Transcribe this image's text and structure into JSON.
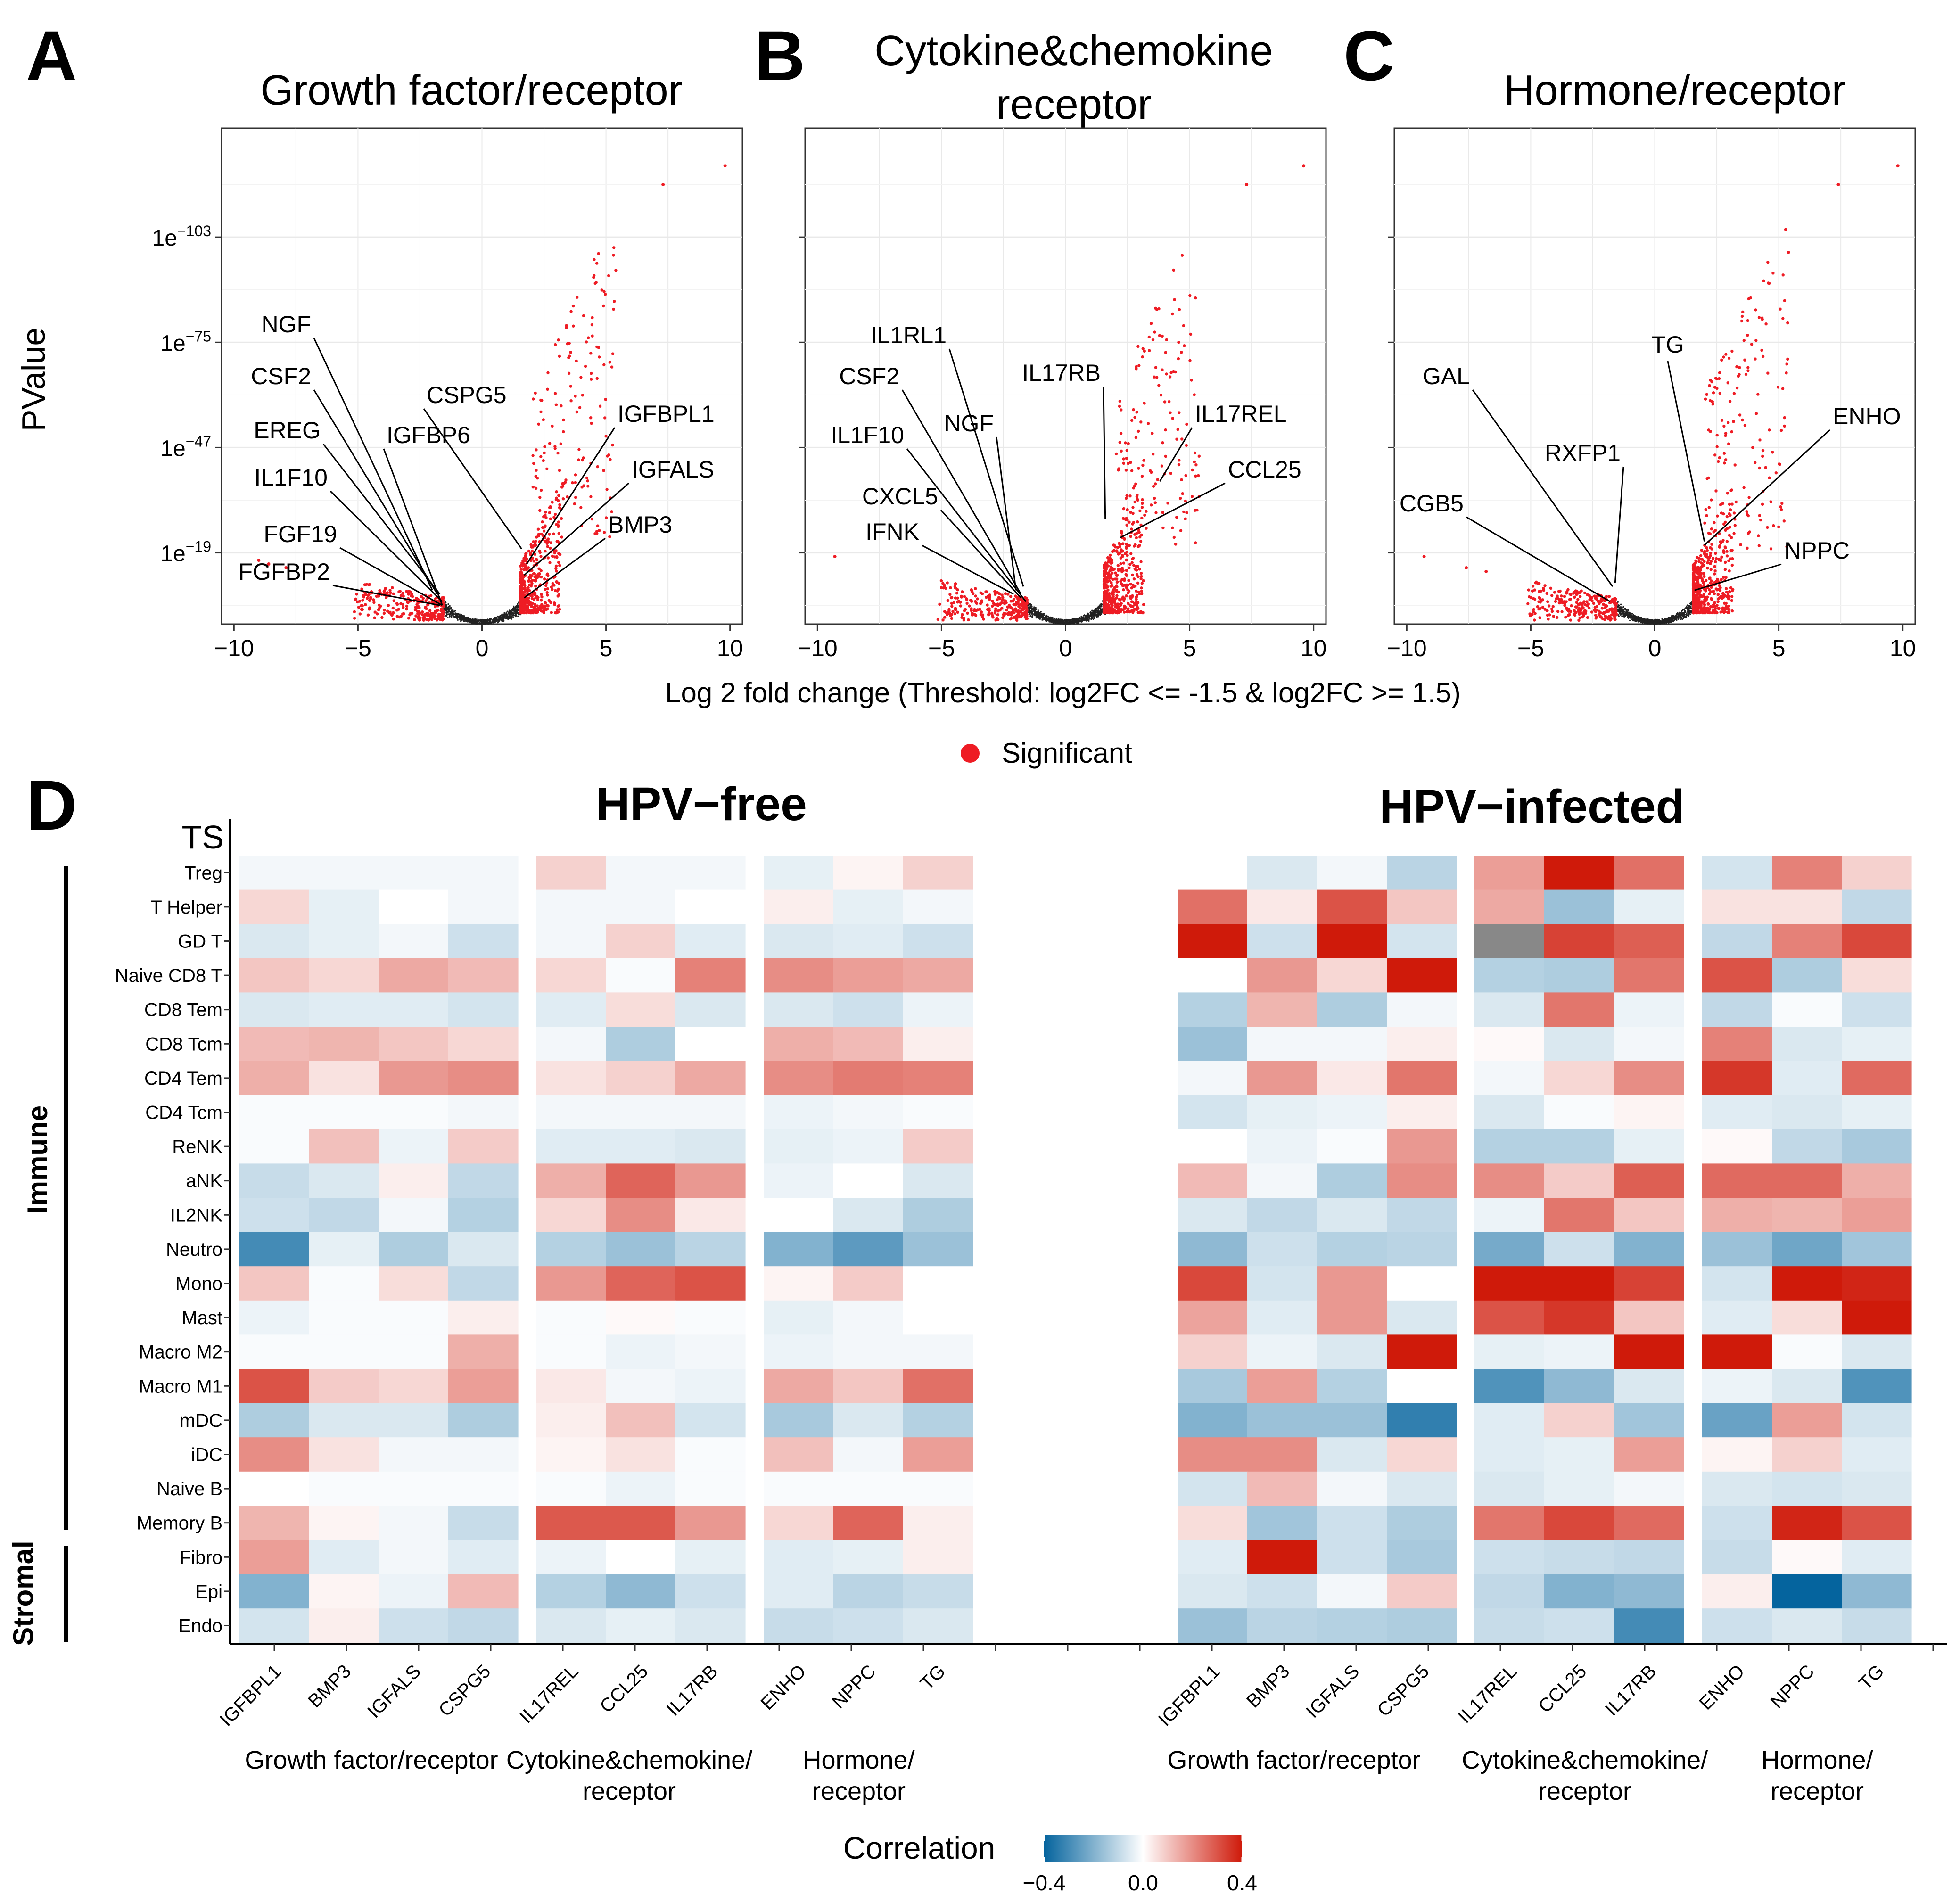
{
  "chart_data": [
    {
      "panel": "A",
      "type": "scatter",
      "title": "Growth factor/receptor",
      "xlabel": "Log 2 fold change (Threshold: log2FC <= -1.5 & log2FC >= 1.5)",
      "ylabel": "PValue",
      "xlim": [
        -10.5,
        10.5
      ],
      "xticks": [
        -10,
        -5,
        0,
        5,
        10
      ],
      "xticklabels": [
        "−10",
        "−5",
        "0",
        "5",
        "10"
      ],
      "ylim_neglog10": [
        0,
        132
      ],
      "yticks_neglog10": [
        19,
        47,
        75,
        103
      ],
      "yticklabels": [
        "1e−19",
        "1e−47",
        "1e−75",
        "1e−103"
      ],
      "top_points": [
        {
          "x": 7.3,
          "y": 117
        },
        {
          "x": 9.8,
          "y": 122
        }
      ],
      "neg_outliers": [
        {
          "x": -9.0,
          "y": 17
        },
        {
          "x": -8.6,
          "y": 16
        },
        {
          "x": -7.9,
          "y": 15
        }
      ],
      "labels": [
        {
          "text": "NGF",
          "x": -2.0,
          "y": 9
        },
        {
          "text": "CSF2",
          "x": -1.8,
          "y": 8
        },
        {
          "text": "EREG",
          "x": -1.7,
          "y": 8
        },
        {
          "text": "IL1F10",
          "x": -1.6,
          "y": 6
        },
        {
          "text": "FGF19",
          "x": -1.6,
          "y": 5
        },
        {
          "text": "FGFBP2",
          "x": -1.7,
          "y": 5
        },
        {
          "text": "IGFBP6",
          "x": -1.6,
          "y": 5
        },
        {
          "text": "CSPG5",
          "x": 1.6,
          "y": 20
        },
        {
          "text": "IGFBPL1",
          "x": 1.8,
          "y": 16
        },
        {
          "text": "IGFALS",
          "x": 1.7,
          "y": 13
        },
        {
          "text": "BMP3",
          "x": 1.7,
          "y": 7
        }
      ]
    },
    {
      "panel": "B",
      "type": "scatter",
      "title": "Cytokine&chemokine receptor",
      "xlim": [
        -10.5,
        10.5
      ],
      "xticks": [
        -10,
        -5,
        0,
        5,
        10
      ],
      "xticklabels": [
        "−10",
        "−5",
        "0",
        "5",
        "10"
      ],
      "top_points": [
        {
          "x": 7.3,
          "y": 117
        },
        {
          "x": 9.6,
          "y": 122
        }
      ],
      "neg_outliers": [
        {
          "x": -9.3,
          "y": 18
        }
      ],
      "labels": [
        {
          "text": "IL1RL1",
          "x": -1.7,
          "y": 10
        },
        {
          "text": "CSF2",
          "x": -1.8,
          "y": 8
        },
        {
          "text": "NGF",
          "x": -2.0,
          "y": 9
        },
        {
          "text": "IL1F10",
          "x": -1.6,
          "y": 6
        },
        {
          "text": "CXCL5",
          "x": -1.8,
          "y": 7
        },
        {
          "text": "IFNK",
          "x": -2.1,
          "y": 8
        },
        {
          "text": "IL17RB",
          "x": 1.6,
          "y": 28
        },
        {
          "text": "IL17REL",
          "x": 3.8,
          "y": 38
        },
        {
          "text": "CCL25",
          "x": 2.2,
          "y": 23
        }
      ]
    },
    {
      "panel": "C",
      "type": "scatter",
      "title": "Hormone/receptor",
      "xlim": [
        -10.5,
        10.5
      ],
      "xticks": [
        -10,
        -5,
        0,
        5,
        10
      ],
      "xticklabels": [
        "−10",
        "−5",
        "0",
        "5",
        "10"
      ],
      "top_points": [
        {
          "x": 7.4,
          "y": 117
        },
        {
          "x": 9.8,
          "y": 122
        }
      ],
      "neg_outliers": [
        {
          "x": -9.3,
          "y": 18
        },
        {
          "x": -7.6,
          "y": 15
        },
        {
          "x": -6.8,
          "y": 14
        }
      ],
      "labels": [
        {
          "text": "GAL",
          "x": -1.7,
          "y": 10
        },
        {
          "text": "CGB5",
          "x": -1.8,
          "y": 6
        },
        {
          "text": "RXFP1",
          "x": -1.6,
          "y": 11
        },
        {
          "text": "TG",
          "x": 2.0,
          "y": 22
        },
        {
          "text": "ENHO",
          "x": 2.0,
          "y": 21
        },
        {
          "text": "NPPC",
          "x": 1.6,
          "y": 9
        }
      ]
    },
    {
      "panel": "D",
      "type": "heatmap",
      "rows": [
        "Treg",
        "T Helper",
        "GD T",
        "Naive CD8 T",
        "CD8 Tem",
        "CD8 Tcm",
        "CD4 Tem",
        "CD4 Tcm",
        "ReNK",
        "aNK",
        "IL2NK",
        "Neutro",
        "Mono",
        "Mast",
        "Macro M2",
        "Macro M1",
        "mDC",
        "iDC",
        "Naive B",
        "Memory B",
        "Fibro",
        "Epi",
        "Endo"
      ],
      "columns": [
        "IGFBPL1",
        "BMP3",
        "IGFALS",
        "CSPG5",
        "IL17REL",
        "CCL25",
        "IL17RB",
        "ENHO",
        "NPPC",
        "TG"
      ],
      "column_groups": [
        {
          "label": "Growth factor/receptor",
          "span": 4
        },
        {
          "label": "Cytokine&chemokine/ receptor",
          "span": 3
        },
        {
          "label": "Hormone/ receptor",
          "span": 3
        }
      ],
      "row_groups": [
        {
          "label": "Immune",
          "from": "Treg",
          "to": "Memory B"
        },
        {
          "label": "Stromal",
          "from": "Fibro",
          "to": "Endo"
        }
      ],
      "row_annotation_label": "TS",
      "colorbar": {
        "title": "Correlation",
        "min": -0.4,
        "max": 0.4,
        "ticks": [
          -0.4,
          0.0,
          0.4
        ],
        "ticklabels": [
          "−0.4",
          "0.0",
          "0.4"
        ],
        "low": "#05649e",
        "mid": "#ffffff",
        "high": "#cf1a0a",
        "na": "#888888"
      },
      "legend": {
        "label": "Significant",
        "color": "#ee1c24"
      },
      "panels": [
        {
          "title": "HPV−free",
          "values": [
            [
              -0.02,
              -0.02,
              -0.02,
              -0.02,
              0.08,
              -0.02,
              -0.02,
              -0.04,
              0.02,
              0.08
            ],
            [
              0.07,
              -0.04,
              0.0,
              -0.02,
              -0.02,
              -0.02,
              0.0,
              0.03,
              -0.04,
              -0.02
            ],
            [
              -0.06,
              -0.04,
              -0.02,
              -0.08,
              -0.02,
              0.08,
              -0.05,
              -0.06,
              -0.05,
              -0.08
            ],
            [
              0.1,
              0.07,
              0.15,
              0.12,
              0.07,
              -0.01,
              0.22,
              0.2,
              0.17,
              0.15
            ],
            [
              -0.06,
              -0.05,
              -0.05,
              -0.07,
              -0.05,
              0.06,
              -0.06,
              -0.06,
              -0.08,
              -0.03
            ],
            [
              0.12,
              0.13,
              0.1,
              0.07,
              -0.02,
              -0.13,
              0.0,
              0.14,
              0.12,
              0.03
            ],
            [
              0.14,
              0.05,
              0.18,
              0.2,
              0.05,
              0.08,
              0.15,
              0.2,
              0.23,
              0.22
            ],
            [
              -0.01,
              -0.01,
              -0.01,
              -0.02,
              -0.02,
              -0.02,
              -0.02,
              -0.03,
              -0.02,
              -0.01
            ],
            [
              -0.01,
              0.11,
              -0.03,
              0.09,
              -0.05,
              -0.05,
              -0.06,
              -0.04,
              -0.03,
              0.09
            ],
            [
              -0.09,
              -0.06,
              0.03,
              -0.1,
              0.14,
              0.27,
              0.18,
              -0.03,
              0.0,
              -0.06
            ],
            [
              -0.08,
              -0.1,
              -0.02,
              -0.12,
              0.07,
              0.2,
              0.04,
              0.0,
              -0.06,
              -0.13
            ],
            [
              -0.3,
              -0.04,
              -0.13,
              -0.06,
              -0.12,
              -0.16,
              -0.11,
              -0.2,
              -0.26,
              -0.16
            ],
            [
              0.1,
              -0.01,
              0.06,
              -0.1,
              0.18,
              0.27,
              0.3,
              0.02,
              0.09,
              0.0
            ],
            [
              -0.03,
              -0.01,
              -0.01,
              0.03,
              -0.01,
              0.01,
              -0.01,
              -0.04,
              -0.02,
              0.0
            ],
            [
              -0.01,
              -0.01,
              -0.01,
              0.14,
              -0.01,
              -0.03,
              -0.02,
              -0.03,
              -0.02,
              -0.02
            ],
            [
              0.3,
              0.09,
              0.07,
              0.17,
              0.04,
              -0.02,
              -0.03,
              0.15,
              0.1,
              0.25
            ],
            [
              -0.13,
              -0.06,
              -0.06,
              -0.13,
              0.03,
              0.11,
              -0.07,
              -0.14,
              -0.06,
              -0.12
            ],
            [
              0.2,
              0.05,
              -0.02,
              -0.02,
              0.02,
              0.05,
              -0.01,
              0.11,
              -0.02,
              0.17
            ],
            [
              0.0,
              -0.01,
              -0.01,
              -0.01,
              -0.01,
              -0.03,
              -0.01,
              -0.01,
              -0.01,
              -0.01
            ],
            [
              0.13,
              0.02,
              -0.02,
              -0.09,
              0.29,
              0.29,
              0.18,
              0.07,
              0.27,
              0.03
            ],
            [
              0.17,
              -0.05,
              -0.02,
              -0.05,
              -0.03,
              0.0,
              -0.04,
              -0.05,
              -0.04,
              0.03
            ],
            [
              -0.2,
              0.02,
              -0.03,
              0.12,
              -0.12,
              -0.18,
              -0.08,
              -0.05,
              -0.11,
              -0.09
            ],
            [
              -0.07,
              0.03,
              -0.08,
              -0.1,
              -0.06,
              -0.04,
              -0.06,
              -0.09,
              -0.08,
              -0.06
            ]
          ]
        },
        {
          "title": "HPV−infected",
          "values": [
            [
              0.0,
              -0.06,
              -0.02,
              -0.11,
              0.17,
              0.4,
              0.25,
              -0.07,
              0.22,
              0.08
            ],
            [
              0.25,
              0.04,
              0.3,
              0.1,
              0.15,
              -0.16,
              -0.04,
              0.05,
              0.05,
              -0.1
            ],
            [
              0.4,
              -0.08,
              0.4,
              -0.07,
              null,
              0.33,
              0.28,
              -0.1,
              0.22,
              0.32
            ],
            [
              0.0,
              0.18,
              0.07,
              0.4,
              -0.12,
              -0.13,
              0.24,
              0.3,
              -0.13,
              0.06
            ],
            [
              -0.12,
              0.13,
              -0.13,
              -0.02,
              -0.06,
              0.24,
              -0.03,
              -0.1,
              -0.01,
              -0.08
            ],
            [
              -0.16,
              -0.02,
              -0.02,
              0.03,
              0.01,
              -0.06,
              -0.02,
              0.22,
              -0.06,
              -0.04
            ],
            [
              -0.02,
              0.18,
              0.04,
              0.24,
              -0.02,
              0.07,
              0.2,
              0.35,
              -0.05,
              0.26
            ],
            [
              -0.07,
              -0.04,
              -0.03,
              0.03,
              -0.06,
              -0.01,
              0.02,
              -0.05,
              -0.06,
              -0.04
            ],
            [
              0.0,
              -0.03,
              -0.01,
              0.18,
              -0.12,
              -0.12,
              -0.04,
              0.01,
              -0.1,
              -0.14
            ],
            [
              0.12,
              -0.02,
              -0.13,
              0.2,
              0.2,
              0.09,
              0.28,
              0.26,
              0.26,
              0.14
            ],
            [
              -0.06,
              -0.1,
              -0.06,
              -0.1,
              -0.03,
              0.24,
              0.1,
              0.14,
              0.13,
              0.17
            ],
            [
              -0.18,
              -0.08,
              -0.12,
              -0.11,
              -0.22,
              -0.08,
              -0.2,
              -0.16,
              -0.23,
              -0.15
            ],
            [
              0.32,
              -0.07,
              0.18,
              0.0,
              0.4,
              0.4,
              0.33,
              -0.07,
              0.4,
              0.38
            ],
            [
              0.16,
              -0.05,
              0.18,
              -0.06,
              0.3,
              0.35,
              0.1,
              -0.05,
              0.06,
              0.4
            ],
            [
              0.08,
              -0.03,
              -0.06,
              0.4,
              -0.04,
              -0.03,
              0.4,
              0.4,
              -0.01,
              -0.06
            ],
            [
              -0.14,
              0.17,
              -0.12,
              0.0,
              -0.28,
              -0.18,
              -0.06,
              -0.03,
              -0.06,
              -0.28
            ],
            [
              -0.2,
              -0.16,
              -0.16,
              -0.33,
              -0.05,
              0.08,
              -0.15,
              -0.24,
              0.17,
              -0.07
            ],
            [
              0.2,
              0.2,
              -0.06,
              0.07,
              -0.05,
              -0.04,
              0.17,
              0.02,
              0.08,
              -0.05
            ],
            [
              -0.07,
              0.12,
              -0.02,
              -0.06,
              -0.06,
              -0.04,
              -0.02,
              -0.06,
              -0.07,
              -0.06
            ],
            [
              0.06,
              -0.15,
              -0.08,
              -0.13,
              0.24,
              0.32,
              0.26,
              -0.08,
              0.38,
              0.3
            ],
            [
              -0.05,
              0.4,
              -0.08,
              -0.14,
              -0.08,
              -0.09,
              -0.1,
              -0.09,
              0.01,
              -0.05
            ],
            [
              -0.06,
              -0.08,
              -0.02,
              0.09,
              -0.1,
              -0.2,
              -0.18,
              0.03,
              -0.4,
              -0.18
            ],
            [
              -0.16,
              -0.11,
              -0.12,
              -0.13,
              -0.09,
              -0.08,
              -0.3,
              -0.08,
              -0.06,
              -0.09
            ]
          ]
        }
      ]
    }
  ],
  "panel_letters": {
    "a": "A",
    "b": "B",
    "c": "C",
    "d": "D"
  },
  "headers": {
    "a": "Growth factor/receptor",
    "b1": "Cytokine&chemokine",
    "b2": "receptor",
    "c": "Hormone/receptor"
  },
  "axis": {
    "ylabel": "PValue",
    "xlabel": "Log 2 fold change (Threshold: log2FC <= -1.5 & log2FC >= 1.5)"
  },
  "legend_label": "Significant",
  "heat": {
    "ts_label": "TS",
    "immune_label": "Immune",
    "stromal_label": "Stromal",
    "free_title": "HPV−free",
    "inf_title": "HPV−infected",
    "groups": {
      "g1": "Growth factor/receptor",
      "g2a": "Cytokine&chemokine/",
      "g2b": "receptor",
      "g3a": "Hormone/",
      "g3b": "receptor"
    },
    "colorbar_title": "Correlation"
  },
  "colors": {
    "sig": "#ee1c24",
    "nonsig": "#222222",
    "grid": "#e9e9e9",
    "frame": "#333333"
  }
}
